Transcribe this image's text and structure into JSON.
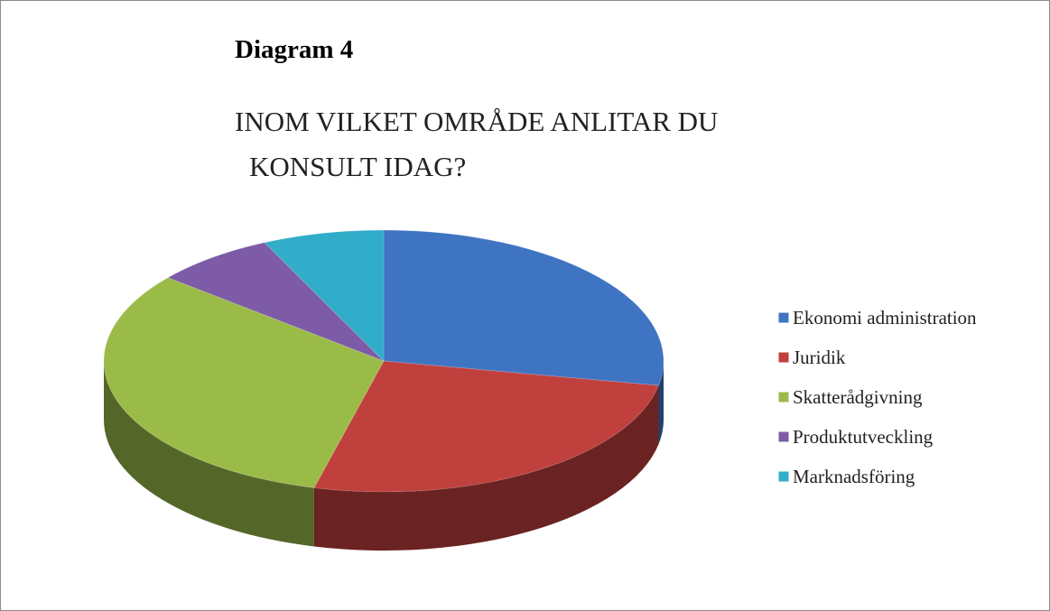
{
  "heading": "Diagram 4",
  "chart_data": {
    "type": "pie",
    "title": [
      "INOM VILKET OMRÅDE ANLITAR DU",
      "KONSULT IDAG?"
    ],
    "categories": [
      "Ekonomi administration",
      "Juridik",
      "Skatterådgivning",
      "Produktutveckling",
      "Marknadsföring"
    ],
    "values": [
      28,
      26,
      32,
      7,
      7
    ],
    "colors": [
      "#3f74c2",
      "#c0403d",
      "#9bbb49",
      "#7d5ba6",
      "#31acc9"
    ],
    "legend": "right"
  }
}
